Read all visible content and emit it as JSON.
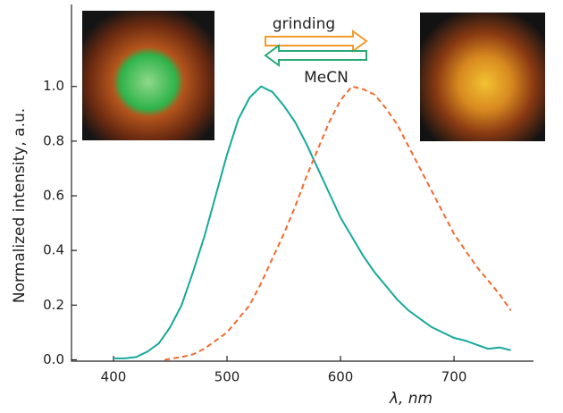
{
  "chart_data": {
    "type": "line",
    "x_label": "λ, nm",
    "y_label": "Normalized intensity, a.u.",
    "annotations": [
      "grinding",
      "MeCN"
    ],
    "series": [
      {
        "color": "#17a99b",
        "dash": false,
        "x": [
          400,
          410,
          420,
          430,
          440,
          450,
          460,
          470,
          480,
          490,
          500,
          510,
          520,
          530,
          540,
          550,
          560,
          570,
          580,
          590,
          600,
          610,
          620,
          630,
          640,
          650,
          660,
          670,
          680,
          690,
          700,
          710,
          720,
          730,
          740,
          750
        ],
        "values": [
          0.005,
          0.005,
          0.01,
          0.03,
          0.06,
          0.12,
          0.2,
          0.32,
          0.45,
          0.6,
          0.75,
          0.88,
          0.96,
          1.0,
          0.98,
          0.93,
          0.87,
          0.79,
          0.7,
          0.61,
          0.52,
          0.45,
          0.38,
          0.32,
          0.27,
          0.22,
          0.18,
          0.15,
          0.12,
          0.1,
          0.08,
          0.07,
          0.055,
          0.04,
          0.045,
          0.035
        ]
      },
      {
        "color": "#f26a2e",
        "dash": true,
        "x": [
          445,
          460,
          470,
          480,
          490,
          500,
          510,
          520,
          530,
          540,
          550,
          560,
          570,
          580,
          590,
          600,
          610,
          620,
          630,
          640,
          650,
          660,
          670,
          680,
          690,
          700,
          710,
          720,
          730,
          740,
          750
        ],
        "values": [
          0.0,
          0.01,
          0.02,
          0.04,
          0.07,
          0.1,
          0.15,
          0.2,
          0.28,
          0.37,
          0.46,
          0.56,
          0.67,
          0.77,
          0.87,
          0.95,
          1.0,
          0.99,
          0.97,
          0.92,
          0.86,
          0.78,
          0.7,
          0.62,
          0.54,
          0.46,
          0.4,
          0.34,
          0.29,
          0.24,
          0.18
        ]
      }
    ],
    "xlim": [
      363,
      770
    ],
    "xticks": [
      400,
      500,
      600,
      700
    ],
    "ylim": [
      -0.005,
      1.3
    ],
    "yticks": [
      {
        "value": 0,
        "label": "0.0"
      },
      {
        "value": 0.2,
        "label": "0.2"
      },
      {
        "value": 0.4,
        "label": "0.4"
      },
      {
        "value": 0.6,
        "label": "0.6"
      },
      {
        "value": 0.8,
        "label": "0.8"
      },
      {
        "value": 1,
        "label": "1.0"
      }
    ],
    "grid": false
  }
}
